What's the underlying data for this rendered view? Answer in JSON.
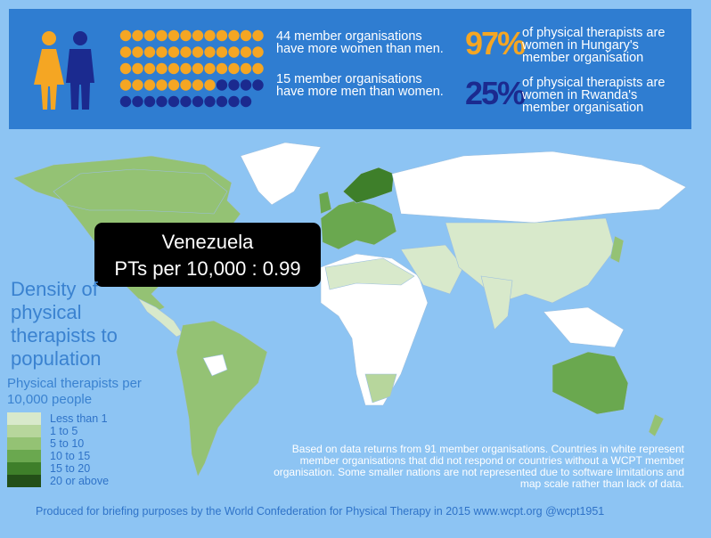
{
  "header": {
    "women": {
      "count": 44,
      "text": "member organisations have more women than men."
    },
    "men": {
      "count": 15,
      "text": "member organisations have more men than women."
    },
    "stats": [
      {
        "big": "97%",
        "color": "#f5a623",
        "text": "of physical therapists are women in Hungary's member organisation"
      },
      {
        "big": "25%",
        "color": "#1b2a8f",
        "text": "of physical therapists are women in Rwanda's member organisation"
      }
    ],
    "women_color": "#f5a623",
    "men_color": "#1b2a8f"
  },
  "tooltip": {
    "country": "Venezuela",
    "text": "PTs per 10,000 : 0.99"
  },
  "legend": {
    "title": "Density of physical therapists to population",
    "subtitle": "Physical therapists per 10,000 people",
    "items": [
      {
        "label": "Less than 1",
        "color": "#d8e9cb"
      },
      {
        "label": "1 to 5",
        "color": "#b7d69c"
      },
      {
        "label": "5 to 10",
        "color": "#94c274"
      },
      {
        "label": "10 to 15",
        "color": "#6aa84f"
      },
      {
        "label": "15 to 20",
        "color": "#3e7f2a"
      },
      {
        "label": "20 or above",
        "color": "#234f18"
      }
    ]
  },
  "note": "Based on data returns from 91 member organisations. Countries in white represent member organisations that did not respond or countries without a WCPT member organisation. Some smaller nations are not represented due to software limitations and map scale rather than lack of data.",
  "credit": "Produced for briefing purposes by the World Confederation for Physical Therapy in 2015 www.wcpt.org @wcpt1951"
}
